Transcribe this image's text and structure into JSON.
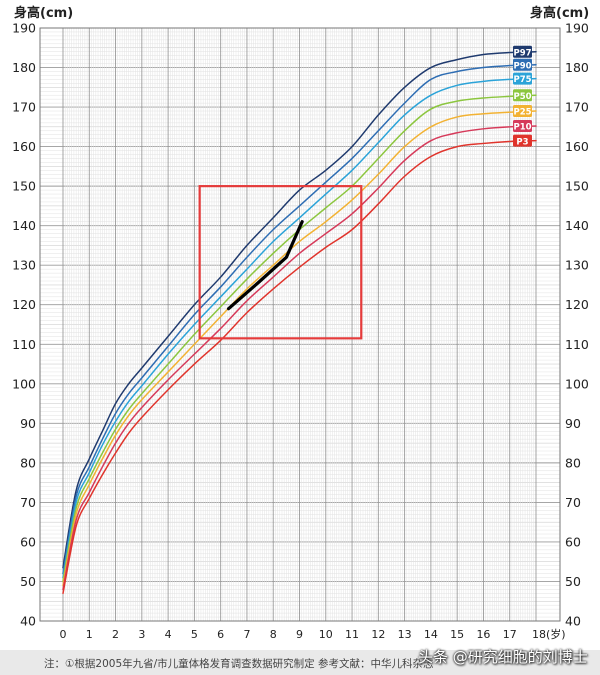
{
  "chart_data": {
    "type": "line",
    "xlabel": "(岁)",
    "ylabel_left": "身高(cm)",
    "ylabel_right": "身高(cm)",
    "x_ticks": [
      0,
      1,
      2,
      3,
      4,
      5,
      6,
      7,
      8,
      9,
      10,
      11,
      12,
      13,
      14,
      15,
      16,
      17,
      18
    ],
    "x_tick_labels": [
      "0",
      "1",
      "2",
      "3",
      "4",
      "5",
      "6",
      "7",
      "8",
      "9",
      "10",
      "11",
      "12",
      "13",
      "14",
      "15",
      "16",
      "17",
      "18(岁)"
    ],
    "xlim": [
      0,
      18
    ],
    "y_ticks": [
      40,
      50,
      60,
      70,
      80,
      90,
      100,
      110,
      120,
      130,
      140,
      150,
      160,
      170,
      180,
      190
    ],
    "ylim": [
      40,
      190
    ],
    "grid": true,
    "legend_position": "right",
    "series": [
      {
        "name": "P97",
        "color": "#1f3a6e",
        "x": [
          0,
          0.5,
          1,
          1.5,
          2,
          2.5,
          3,
          4,
          5,
          6,
          7,
          8,
          9,
          10,
          11,
          12,
          13,
          14,
          15,
          16,
          17,
          18
        ],
        "values": [
          53.5,
          73,
          81,
          88,
          95,
          100,
          104,
          112,
          120,
          127,
          135,
          142,
          149,
          154,
          160,
          168,
          175,
          180,
          182,
          183.3,
          183.8,
          184
        ]
      },
      {
        "name": "P90",
        "color": "#2e6db3",
        "x": [
          0,
          0.5,
          1,
          1.5,
          2,
          2.5,
          3,
          4,
          5,
          6,
          7,
          8,
          9,
          10,
          11,
          12,
          13,
          14,
          15,
          16,
          17,
          18
        ],
        "values": [
          52,
          71.5,
          79,
          86,
          92.5,
          97.5,
          101.5,
          109.5,
          117.5,
          124.5,
          132,
          139,
          145,
          151,
          157,
          164,
          171,
          177,
          179,
          180,
          180.5,
          180.7
        ]
      },
      {
        "name": "P75",
        "color": "#2ba3d8",
        "x": [
          0,
          0.5,
          1,
          1.5,
          2,
          2.5,
          3,
          4,
          5,
          6,
          7,
          8,
          9,
          10,
          11,
          12,
          13,
          14,
          15,
          16,
          17,
          18
        ],
        "values": [
          51,
          70,
          77.5,
          84.5,
          90.5,
          95.5,
          99.5,
          107.5,
          115,
          122,
          129,
          136,
          142,
          148,
          154,
          161,
          168,
          173,
          175.5,
          176.5,
          177,
          177.2
        ]
      },
      {
        "name": "P50",
        "color": "#8cc63f",
        "x": [
          0,
          0.5,
          1,
          1.5,
          2,
          2.5,
          3,
          4,
          5,
          6,
          7,
          8,
          9,
          10,
          11,
          12,
          13,
          14,
          15,
          16,
          17,
          18
        ],
        "values": [
          50,
          68.5,
          76,
          82.5,
          88.5,
          93.5,
          97.5,
          105,
          112.5,
          119.5,
          126.5,
          133,
          139,
          144.5,
          150,
          157,
          164,
          169.5,
          171.5,
          172.3,
          172.7,
          173
        ]
      },
      {
        "name": "P25",
        "color": "#f2b233",
        "x": [
          0,
          0.5,
          1,
          1.5,
          2,
          2.5,
          3,
          4,
          5,
          6,
          7,
          8,
          9,
          10,
          11,
          12,
          13,
          14,
          15,
          16,
          17,
          18
        ],
        "values": [
          49,
          67,
          74.5,
          81,
          87,
          92,
          96,
          103,
          110,
          117,
          124,
          130,
          136,
          141,
          146.5,
          153,
          160,
          165,
          167.5,
          168.3,
          168.7,
          169
        ]
      },
      {
        "name": "P10",
        "color": "#d63a5a",
        "x": [
          0,
          0.5,
          1,
          1.5,
          2,
          2.5,
          3,
          4,
          5,
          6,
          7,
          8,
          9,
          10,
          11,
          12,
          13,
          14,
          15,
          16,
          17,
          18
        ],
        "values": [
          48,
          65.5,
          72.5,
          79,
          85,
          90,
          94,
          101,
          107.5,
          114,
          121,
          127,
          133,
          138,
          143,
          149.5,
          156.5,
          161.5,
          163.5,
          164.5,
          165,
          165.2
        ]
      },
      {
        "name": "P3",
        "color": "#e0342c",
        "x": [
          0,
          0.5,
          1,
          1.5,
          2,
          2.5,
          3,
          4,
          5,
          6,
          7,
          8,
          9,
          10,
          11,
          12,
          13,
          14,
          15,
          16,
          17,
          18
        ],
        "values": [
          47,
          64,
          71,
          77,
          82.5,
          87.5,
          91.5,
          98.5,
          105,
          111,
          118,
          124,
          129.5,
          134.5,
          139,
          145.5,
          152.5,
          157.5,
          160,
          160.8,
          161.3,
          161.5
        ]
      },
      {
        "color": "#000000",
        "x": [
          6.3,
          7.5,
          8.5,
          9.1
        ],
        "values": [
          119,
          126,
          132,
          141
        ]
      }
    ],
    "annotation_box": {
      "color": "#e53b3b",
      "x_range": [
        5.2,
        11.35
      ],
      "y_range": [
        111.5,
        150
      ]
    }
  },
  "footnote": "注：①根据2005年九省/市儿童体格发育调查数据研究制定  参考文献：中华儿科杂志",
  "watermark": "头条 @研究细胞的刘博士"
}
